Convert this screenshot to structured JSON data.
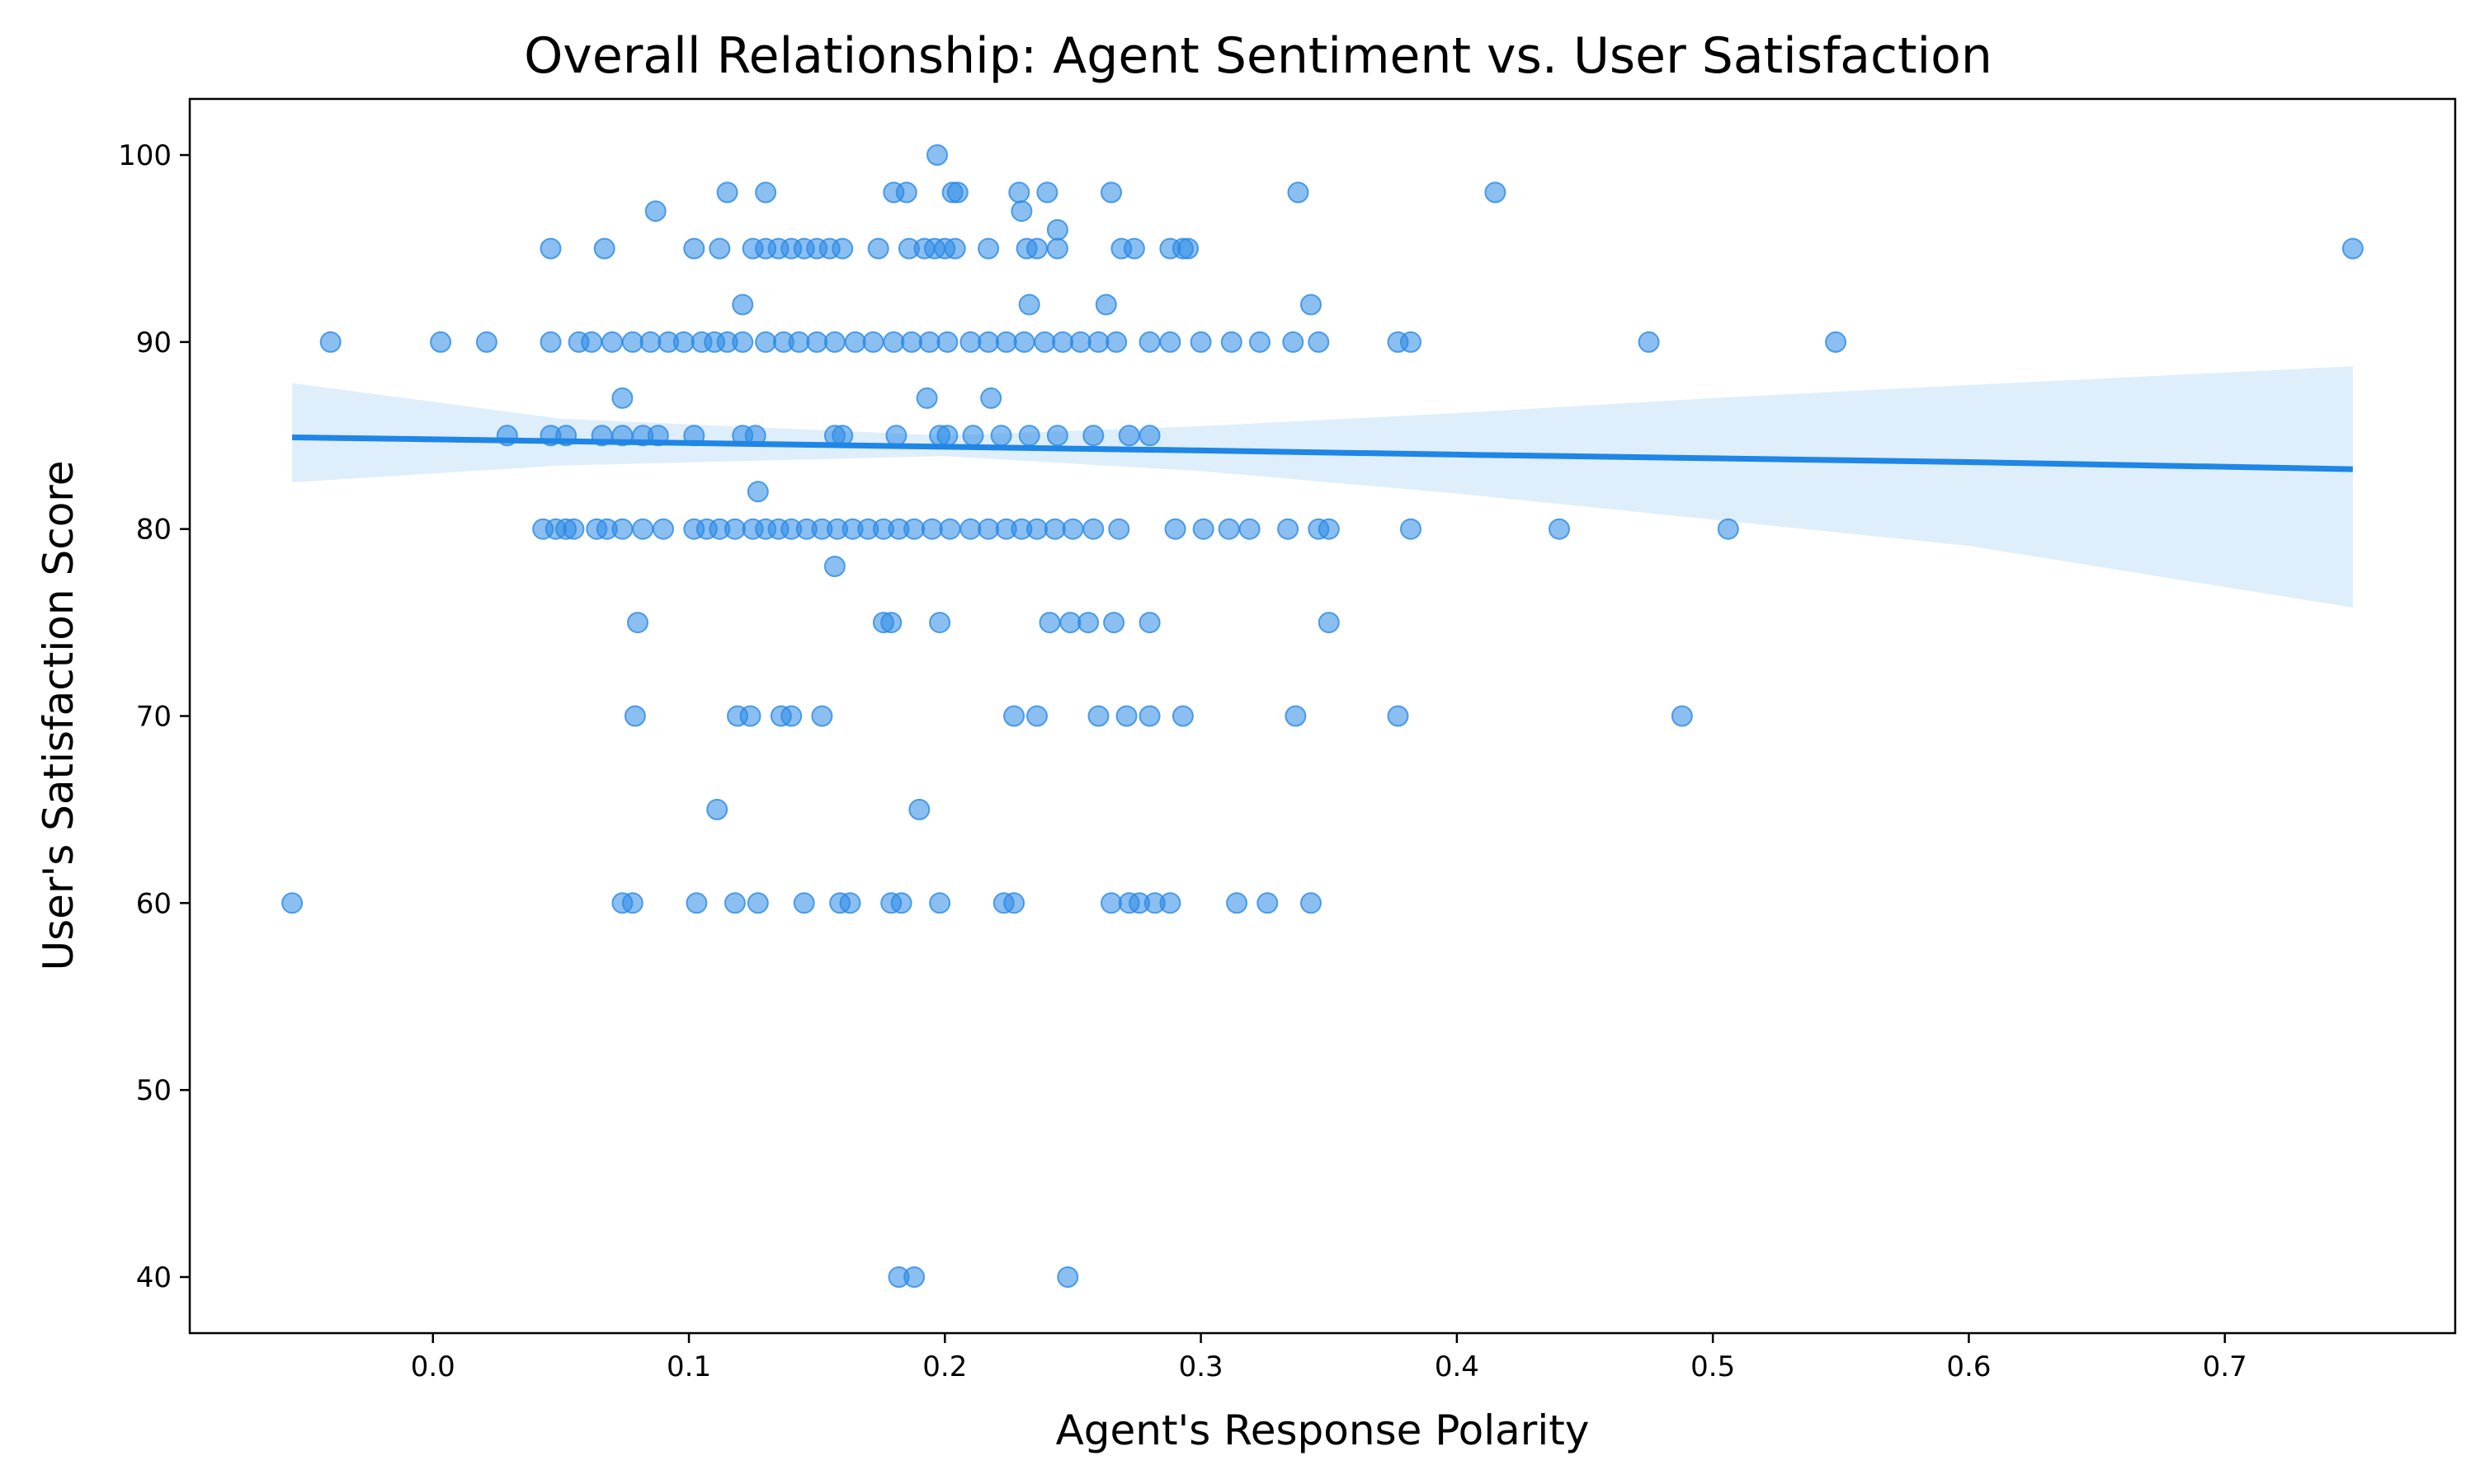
{
  "chart_data": {
    "type": "scatter",
    "title": "Overall Relationship: Agent Sentiment vs. User Satisfaction",
    "xlabel": "Agent's Response Polarity",
    "ylabel": "User's Satisfaction Score",
    "xlim": [
      -0.095,
      0.79
    ],
    "ylim": [
      37,
      103
    ],
    "xticks": [
      0.0,
      0.1,
      0.2,
      0.3,
      0.4,
      0.5,
      0.6,
      0.7
    ],
    "xtick_labels": [
      "0.0",
      "0.1",
      "0.2",
      "0.3",
      "0.4",
      "0.5",
      "0.6",
      "0.7"
    ],
    "yticks": [
      40,
      50,
      60,
      70,
      80,
      90,
      100
    ],
    "ytick_labels": [
      "40",
      "50",
      "60",
      "70",
      "80",
      "90",
      "100"
    ],
    "grid": false,
    "colors": {
      "points": "#2b8ae6",
      "regression": "#1f86e5",
      "band": "#2b8ae6"
    },
    "regression": {
      "x": [
        -0.055,
        0.05,
        0.2,
        0.3,
        0.4,
        0.5,
        0.6,
        0.75
      ],
      "y": [
        84.9,
        84.7,
        84.4,
        84.2,
        83.98,
        83.78,
        83.58,
        83.2
      ],
      "ci_lower": [
        82.5,
        83.4,
        83.9,
        83.1,
        81.9,
        80.5,
        79.1,
        75.8
      ],
      "ci_upper": [
        87.8,
        85.9,
        85.0,
        85.5,
        86.2,
        87.0,
        87.7,
        88.7
      ]
    },
    "points": [
      [
        0.197,
        100
      ],
      [
        0.115,
        98
      ],
      [
        0.13,
        98
      ],
      [
        0.18,
        98
      ],
      [
        0.185,
        98
      ],
      [
        0.203,
        98
      ],
      [
        0.205,
        98
      ],
      [
        0.229,
        98
      ],
      [
        0.24,
        98
      ],
      [
        0.265,
        98
      ],
      [
        0.338,
        98
      ],
      [
        0.415,
        98
      ],
      [
        0.087,
        97
      ],
      [
        0.23,
        97
      ],
      [
        0.244,
        96
      ],
      [
        0.046,
        95
      ],
      [
        0.067,
        95
      ],
      [
        0.102,
        95
      ],
      [
        0.112,
        95
      ],
      [
        0.125,
        95
      ],
      [
        0.13,
        95
      ],
      [
        0.135,
        95
      ],
      [
        0.14,
        95
      ],
      [
        0.145,
        95
      ],
      [
        0.15,
        95
      ],
      [
        0.155,
        95
      ],
      [
        0.16,
        95
      ],
      [
        0.174,
        95
      ],
      [
        0.186,
        95
      ],
      [
        0.192,
        95
      ],
      [
        0.196,
        95
      ],
      [
        0.2,
        95
      ],
      [
        0.204,
        95
      ],
      [
        0.217,
        95
      ],
      [
        0.232,
        95
      ],
      [
        0.236,
        95
      ],
      [
        0.244,
        95
      ],
      [
        0.269,
        95
      ],
      [
        0.274,
        95
      ],
      [
        0.288,
        95
      ],
      [
        0.293,
        95
      ],
      [
        0.295,
        95
      ],
      [
        0.75,
        95
      ],
      [
        0.121,
        92
      ],
      [
        0.233,
        92
      ],
      [
        0.263,
        92
      ],
      [
        0.343,
        92
      ],
      [
        -0.04,
        90
      ],
      [
        0.003,
        90
      ],
      [
        0.021,
        90
      ],
      [
        0.046,
        90
      ],
      [
        0.057,
        90
      ],
      [
        0.062,
        90
      ],
      [
        0.07,
        90
      ],
      [
        0.078,
        90
      ],
      [
        0.085,
        90
      ],
      [
        0.092,
        90
      ],
      [
        0.098,
        90
      ],
      [
        0.105,
        90
      ],
      [
        0.11,
        90
      ],
      [
        0.115,
        90
      ],
      [
        0.121,
        90
      ],
      [
        0.13,
        90
      ],
      [
        0.137,
        90
      ],
      [
        0.143,
        90
      ],
      [
        0.15,
        90
      ],
      [
        0.157,
        90
      ],
      [
        0.165,
        90
      ],
      [
        0.172,
        90
      ],
      [
        0.18,
        90
      ],
      [
        0.187,
        90
      ],
      [
        0.194,
        90
      ],
      [
        0.201,
        90
      ],
      [
        0.21,
        90
      ],
      [
        0.217,
        90
      ],
      [
        0.224,
        90
      ],
      [
        0.231,
        90
      ],
      [
        0.239,
        90
      ],
      [
        0.246,
        90
      ],
      [
        0.253,
        90
      ],
      [
        0.26,
        90
      ],
      [
        0.267,
        90
      ],
      [
        0.28,
        90
      ],
      [
        0.288,
        90
      ],
      [
        0.3,
        90
      ],
      [
        0.312,
        90
      ],
      [
        0.323,
        90
      ],
      [
        0.336,
        90
      ],
      [
        0.346,
        90
      ],
      [
        0.377,
        90
      ],
      [
        0.382,
        90
      ],
      [
        0.475,
        90
      ],
      [
        0.548,
        90
      ],
      [
        0.074,
        87
      ],
      [
        0.193,
        87
      ],
      [
        0.218,
        87
      ],
      [
        0.029,
        85
      ],
      [
        0.046,
        85
      ],
      [
        0.052,
        85
      ],
      [
        0.066,
        85
      ],
      [
        0.074,
        85
      ],
      [
        0.082,
        85
      ],
      [
        0.088,
        85
      ],
      [
        0.102,
        85
      ],
      [
        0.121,
        85
      ],
      [
        0.126,
        85
      ],
      [
        0.157,
        85
      ],
      [
        0.16,
        85
      ],
      [
        0.181,
        85
      ],
      [
        0.198,
        85
      ],
      [
        0.201,
        85
      ],
      [
        0.211,
        85
      ],
      [
        0.222,
        85
      ],
      [
        0.233,
        85
      ],
      [
        0.244,
        85
      ],
      [
        0.258,
        85
      ],
      [
        0.272,
        85
      ],
      [
        0.28,
        85
      ],
      [
        0.127,
        82
      ],
      [
        0.043,
        80
      ],
      [
        0.048,
        80
      ],
      [
        0.052,
        80
      ],
      [
        0.055,
        80
      ],
      [
        0.064,
        80
      ],
      [
        0.068,
        80
      ],
      [
        0.074,
        80
      ],
      [
        0.082,
        80
      ],
      [
        0.09,
        80
      ],
      [
        0.102,
        80
      ],
      [
        0.107,
        80
      ],
      [
        0.112,
        80
      ],
      [
        0.118,
        80
      ],
      [
        0.125,
        80
      ],
      [
        0.13,
        80
      ],
      [
        0.135,
        80
      ],
      [
        0.14,
        80
      ],
      [
        0.146,
        80
      ],
      [
        0.152,
        80
      ],
      [
        0.158,
        80
      ],
      [
        0.164,
        80
      ],
      [
        0.17,
        80
      ],
      [
        0.176,
        80
      ],
      [
        0.182,
        80
      ],
      [
        0.188,
        80
      ],
      [
        0.195,
        80
      ],
      [
        0.202,
        80
      ],
      [
        0.21,
        80
      ],
      [
        0.217,
        80
      ],
      [
        0.224,
        80
      ],
      [
        0.23,
        80
      ],
      [
        0.236,
        80
      ],
      [
        0.243,
        80
      ],
      [
        0.25,
        80
      ],
      [
        0.258,
        80
      ],
      [
        0.268,
        80
      ],
      [
        0.29,
        80
      ],
      [
        0.301,
        80
      ],
      [
        0.311,
        80
      ],
      [
        0.319,
        80
      ],
      [
        0.334,
        80
      ],
      [
        0.346,
        80
      ],
      [
        0.35,
        80
      ],
      [
        0.382,
        80
      ],
      [
        0.44,
        80
      ],
      [
        0.506,
        80
      ],
      [
        0.157,
        78
      ],
      [
        0.08,
        75
      ],
      [
        0.176,
        75
      ],
      [
        0.179,
        75
      ],
      [
        0.198,
        75
      ],
      [
        0.241,
        75
      ],
      [
        0.249,
        75
      ],
      [
        0.256,
        75
      ],
      [
        0.266,
        75
      ],
      [
        0.28,
        75
      ],
      [
        0.35,
        75
      ],
      [
        0.079,
        70
      ],
      [
        0.119,
        70
      ],
      [
        0.124,
        70
      ],
      [
        0.136,
        70
      ],
      [
        0.14,
        70
      ],
      [
        0.152,
        70
      ],
      [
        0.227,
        70
      ],
      [
        0.236,
        70
      ],
      [
        0.26,
        70
      ],
      [
        0.271,
        70
      ],
      [
        0.28,
        70
      ],
      [
        0.293,
        70
      ],
      [
        0.337,
        70
      ],
      [
        0.377,
        70
      ],
      [
        0.488,
        70
      ],
      [
        0.111,
        65
      ],
      [
        0.19,
        65
      ],
      [
        -0.055,
        60
      ],
      [
        0.074,
        60
      ],
      [
        0.078,
        60
      ],
      [
        0.103,
        60
      ],
      [
        0.118,
        60
      ],
      [
        0.127,
        60
      ],
      [
        0.145,
        60
      ],
      [
        0.159,
        60
      ],
      [
        0.163,
        60
      ],
      [
        0.179,
        60
      ],
      [
        0.183,
        60
      ],
      [
        0.198,
        60
      ],
      [
        0.223,
        60
      ],
      [
        0.227,
        60
      ],
      [
        0.265,
        60
      ],
      [
        0.272,
        60
      ],
      [
        0.276,
        60
      ],
      [
        0.282,
        60
      ],
      [
        0.288,
        60
      ],
      [
        0.314,
        60
      ],
      [
        0.326,
        60
      ],
      [
        0.343,
        60
      ],
      [
        0.182,
        40
      ],
      [
        0.188,
        40
      ],
      [
        0.248,
        40
      ]
    ]
  }
}
